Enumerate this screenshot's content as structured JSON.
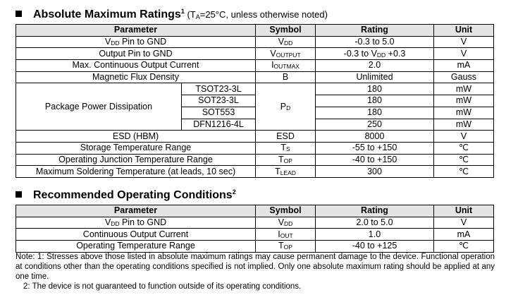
{
  "section1": {
    "title": [
      {
        "text": "Absolute Maximum Ratings"
      },
      {
        "sup": "1"
      },
      {
        "small": " (T"
      },
      {
        "sub": "A"
      },
      {
        "small": "=25°C, unless otherwise noted)"
      }
    ],
    "header": [
      "Parameter",
      "Symbol",
      "Rating",
      "Unit"
    ],
    "rows": [
      {
        "parameter": [
          {
            "text": "V"
          },
          {
            "sub": "DD"
          },
          {
            "text": " Pin to GND"
          }
        ],
        "symbol": [
          {
            "text": "V"
          },
          {
            "sub": "DD"
          }
        ],
        "rating": "-0.3 to 5.0",
        "unit": "V"
      },
      {
        "parameter": "Output Pin to GND",
        "symbol": [
          {
            "text": "V"
          },
          {
            "sub": "OUTPUT"
          }
        ],
        "rating": [
          {
            "text": "-0.3 to V"
          },
          {
            "sub": "DD"
          },
          {
            "text": " +0.3"
          }
        ],
        "unit": "V"
      },
      {
        "parameter": "Max. Continuous Output Current",
        "symbol": [
          {
            "text": "I"
          },
          {
            "sub": "OUTMAX"
          }
        ],
        "rating": "2.0",
        "unit": "mA"
      },
      {
        "parameter": "Magnetic Flux Density",
        "symbol": "B",
        "rating": "Unlimited",
        "unit": "Gauss"
      },
      {
        "parameter": "Package Power Dissipation",
        "symbol": [
          {
            "text": "P"
          },
          {
            "sub": "D"
          }
        ],
        "variants": [
          {
            "package": "TSOT23-3L",
            "rating": "180",
            "unit": "mW"
          },
          {
            "package": "SOT23-3L",
            "rating": "180",
            "unit": "mW"
          },
          {
            "package": "SOT553",
            "rating": "180",
            "unit": "mW"
          },
          {
            "package": "DFN1216-4L",
            "rating": "250",
            "unit": "mW"
          }
        ]
      },
      {
        "parameter": "ESD (HBM)",
        "symbol": "ESD",
        "rating": "8000",
        "unit": "V"
      },
      {
        "parameter": "Storage Temperature Range",
        "symbol": [
          {
            "text": "T"
          },
          {
            "sub": "S"
          }
        ],
        "rating": "-55 to +150",
        "unit": "℃"
      },
      {
        "parameter": "Operating Junction Temperature Range",
        "symbol": [
          {
            "text": "T"
          },
          {
            "sub": "OP"
          }
        ],
        "rating": "-40 to +150",
        "unit": "℃"
      },
      {
        "parameter": "Maximum Soldering Temperature (at leads, 10 sec)",
        "symbol": [
          {
            "text": "T"
          },
          {
            "sub": "LEAD"
          }
        ],
        "rating": "300",
        "unit": "℃"
      }
    ]
  },
  "section2": {
    "title": [
      {
        "text": "Recommended Operating Conditions"
      },
      {
        "sup": "2"
      }
    ],
    "header": [
      "Parameter",
      "Symbol",
      "Rating",
      "Unit"
    ],
    "rows": [
      {
        "parameter": [
          {
            "text": "V"
          },
          {
            "sub": "DD"
          },
          {
            "text": " Pin to GND"
          }
        ],
        "symbol": [
          {
            "text": "V"
          },
          {
            "sub": "DD"
          }
        ],
        "rating": "2.0 to 5.0",
        "unit": "V"
      },
      {
        "parameter": "Continuous Output Current",
        "symbol": [
          {
            "text": "I"
          },
          {
            "sub": "OUT"
          }
        ],
        "rating": "1.0",
        "unit": "mA"
      },
      {
        "parameter": "Operating Temperature Range",
        "symbol": [
          {
            "text": "T"
          },
          {
            "sub": "OP"
          }
        ],
        "rating": "-40 to +125",
        "unit": "℃"
      }
    ]
  },
  "notes": [
    "Note: 1: Stresses above those listed in absolute maximum ratings may cause permanent damage to the device. Functional operation at conditions other than the operating conditions specified is not implied. Only one absolute maximum rating should be applied at any one time.",
    "2: The device is not guaranteed to function outside of its operating conditions."
  ]
}
